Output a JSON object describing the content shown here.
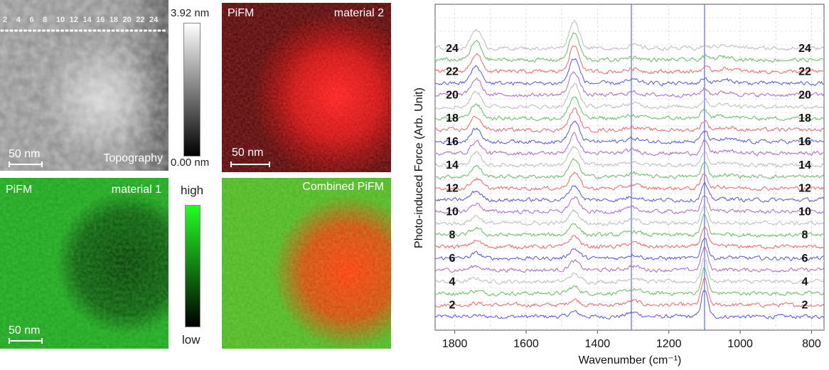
{
  "panels": {
    "topography": {
      "label": "Topography",
      "scale_label": "50 nm",
      "line_labels": [
        "2",
        "4",
        "6",
        "8",
        "10",
        "12",
        "14",
        "16",
        "18",
        "20",
        "22",
        "24"
      ]
    },
    "material2": {
      "label_left": "PiFM",
      "label_right": "material 2",
      "scale_label": "50 nm"
    },
    "material1": {
      "label_left": "PiFM",
      "label_right": "material 1",
      "scale_label": "50 nm"
    },
    "combined": {
      "label": "Combined PiFM"
    }
  },
  "colorbars": {
    "height": {
      "max_label": "3.92 nm",
      "min_label": "0.00 nm"
    },
    "pifm": {
      "max_label": "high",
      "min_label": "low"
    }
  },
  "colors": {
    "material1": "#22e022",
    "material2": "#ff2020",
    "spectrum_cycle": [
      "#5555e0",
      "#ee6666",
      "#66bb66",
      "#bbbbbb",
      "#aa66cc"
    ],
    "reference_lines": "#6a78e8"
  },
  "chart_data": {
    "type": "line",
    "title": "",
    "xlabel": "Wavenumber (cm⁻¹)",
    "ylabel": "Photo-induced Force (Arb. Unit)",
    "xlim": [
      1855,
      765
    ],
    "x_reversed": true,
    "xticks": [
      1800,
      1600,
      1400,
      1200,
      1000,
      800
    ],
    "grid": true,
    "reference_lines_x": [
      1305,
      1100
    ],
    "series_labels": [
      "2",
      "4",
      "6",
      "8",
      "10",
      "12",
      "14",
      "16",
      "18",
      "20",
      "22",
      "24"
    ],
    "num_traces": 24,
    "peaks": [
      {
        "x": 1740,
        "amplitude_bottom": 0.05,
        "amplitude_top": 1.05
      },
      {
        "x": 1465,
        "amplitude_bottom": 0.25,
        "amplitude_top": 1.5
      },
      {
        "x": 1100,
        "amplitude_bottom": 1.45,
        "amplitude_top": 0.1
      }
    ]
  }
}
